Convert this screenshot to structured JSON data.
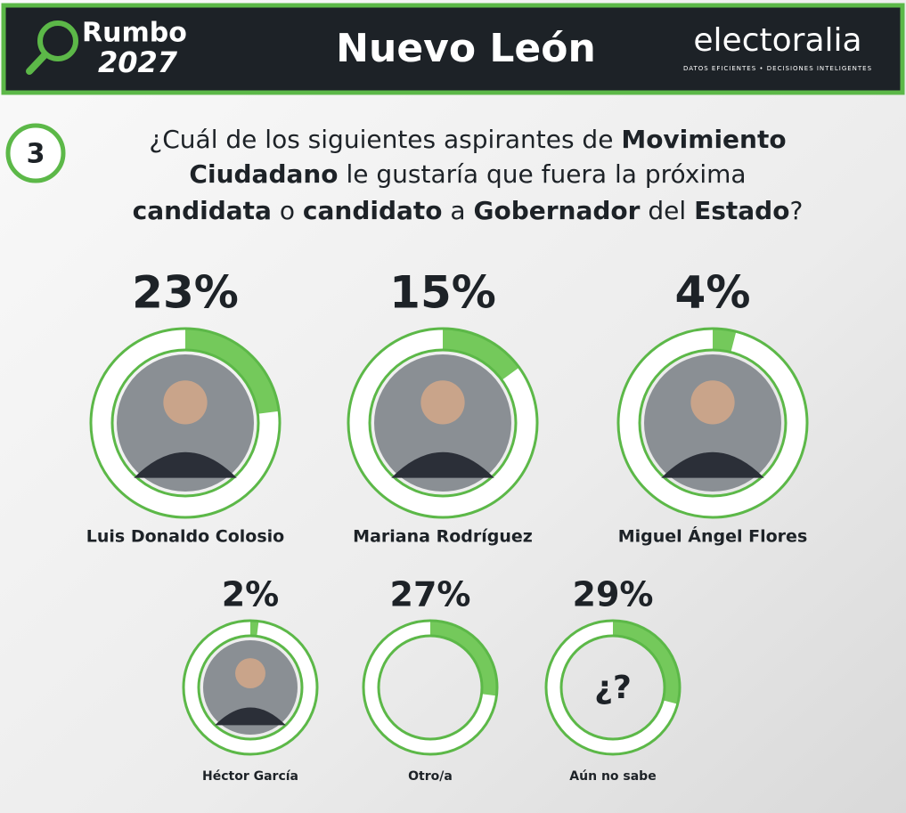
{
  "header": {
    "brand_top": "Rumbo",
    "brand_bottom": "2027",
    "region": "Nuevo León",
    "company": "electoralia",
    "tagline": "DATOS EFICIENTES • DECISIONES INTELIGENTES"
  },
  "chart_data": {
    "type": "donut",
    "number": "3",
    "title": [
      [
        {
          "text": "¿Cuál de los siguientes aspirantes de ",
          "bold": false
        },
        {
          "text": "Movimiento",
          "bold": true
        }
      ],
      [
        {
          "text": "Ciudadano",
          "bold": true
        },
        {
          "text": " le gustaría que fuera la próxima",
          "bold": false
        }
      ],
      [
        {
          "text": "candidata",
          "bold": true
        },
        {
          "text": " o ",
          "bold": false
        },
        {
          "text": "candidato",
          "bold": true
        },
        {
          "text": " a ",
          "bold": false
        },
        {
          "text": "Gobernador",
          "bold": true
        },
        {
          "text": " del ",
          "bold": false
        },
        {
          "text": "Estado",
          "bold": true
        },
        {
          "text": "?",
          "bold": false
        }
      ]
    ],
    "categories": [
      "Luis Donaldo Colosio",
      "Mariana Rodríguez",
      "Miguel Ángel Flores",
      "Héctor García",
      "Otro/a",
      "Aún no sabe"
    ],
    "values": [
      23,
      15,
      4,
      2,
      27,
      29
    ],
    "value_labels": [
      "23%",
      "15%",
      "4%",
      "2%",
      "27%",
      "29%"
    ],
    "center_labels": [
      null,
      null,
      null,
      null,
      null,
      "¿?"
    ],
    "photos": [
      true,
      true,
      true,
      true,
      false,
      false
    ],
    "color": "#74c95b",
    "ring_color": "#ffffff",
    "outline_color": "#5cb848"
  }
}
